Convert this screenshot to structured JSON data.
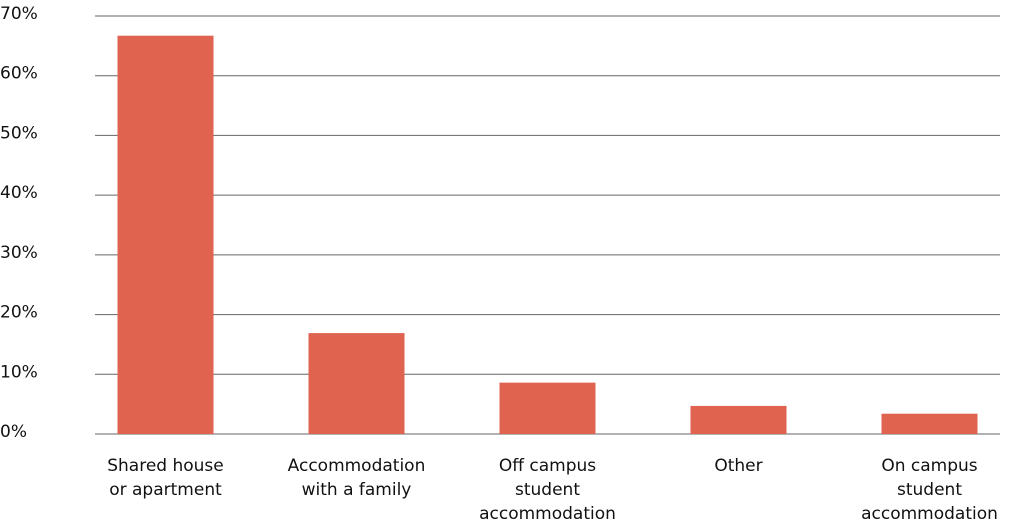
{
  "chart_data": {
    "type": "bar",
    "categories": [
      [
        "Shared house",
        "or apartment"
      ],
      [
        "Accommodation",
        "with a family"
      ],
      [
        "Off campus",
        "student",
        "accommodation"
      ],
      [
        "Other"
      ],
      [
        "On campus",
        "student",
        "accommodation"
      ]
    ],
    "values": [
      66.7,
      16.9,
      8.6,
      4.7,
      3.4
    ],
    "color": "#df634f",
    "ylim": [
      0,
      70
    ],
    "yticks": [
      {
        "value": 0,
        "label": "0%"
      },
      {
        "value": 10,
        "label": "10%"
      },
      {
        "value": 20,
        "label": "20%"
      },
      {
        "value": 30,
        "label": "30%"
      },
      {
        "value": 40,
        "label": "40%"
      },
      {
        "value": 50,
        "label": "50%"
      },
      {
        "value": 60,
        "label": "60%"
      },
      {
        "value": 70,
        "label": "70%"
      }
    ],
    "grid": true
  }
}
